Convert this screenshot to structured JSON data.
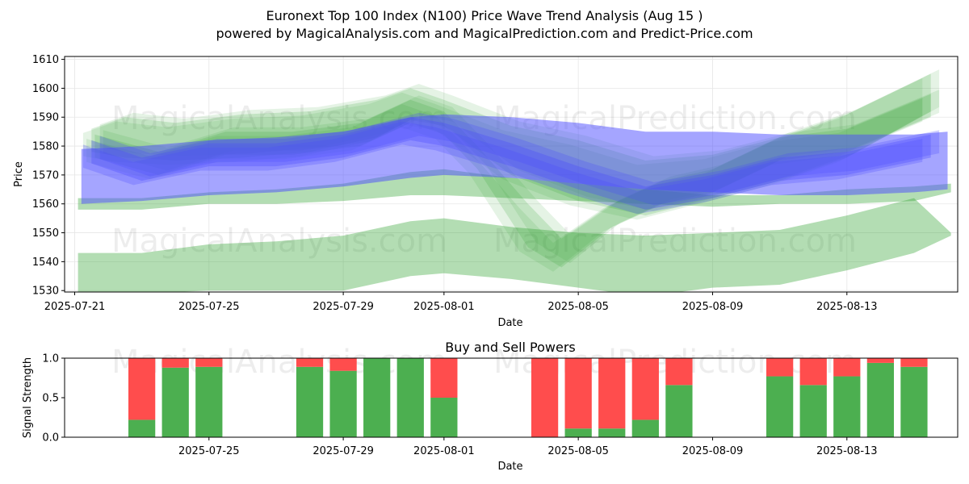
{
  "title": "Euronext Top 100 Index (N100) Price Wave Trend Analysis (Aug 15 )",
  "subtitle": "powered by MagicalAnalysis.com and MagicalPrediction.com and Predict-Price.com",
  "watermarks": [
    "MagicalAnalysis.com",
    "MagicalPrediction.com"
  ],
  "colors": {
    "green_band": "#2ca02c",
    "blue_band": "#4b4bff",
    "buy": "#4caf50",
    "sell": "#ff4d4d"
  },
  "chart_data": [
    {
      "type": "area",
      "title": "",
      "xlabel": "Date",
      "ylabel": "Price",
      "grid": true,
      "x_start": "2025-07-21",
      "x_end": "2025-08-16",
      "xlim_days": [
        -0.3,
        26.3
      ],
      "ylim": [
        1529.5,
        1611
      ],
      "y_ticks": [
        1530,
        1540,
        1550,
        1560,
        1570,
        1580,
        1590,
        1600,
        1610
      ],
      "x_ticks": [
        {
          "day": 0,
          "label": "2025-07-21"
        },
        {
          "day": 4,
          "label": "2025-07-25"
        },
        {
          "day": 8,
          "label": "2025-07-29"
        },
        {
          "day": 11,
          "label": "2025-08-01"
        },
        {
          "day": 15,
          "label": "2025-08-05"
        },
        {
          "day": 19,
          "label": "2025-08-09"
        },
        {
          "day": 23,
          "label": "2025-08-13"
        }
      ],
      "series": [
        {
          "name": "green-band-low",
          "color": "green",
          "days": [
            0.1,
            2,
            4,
            6,
            8,
            10,
            11,
            13,
            15,
            17,
            19,
            21,
            23,
            25,
            26.1
          ],
          "upper": [
            1543,
            1543,
            1546,
            1547,
            1549,
            1554,
            1555,
            1552,
            1550,
            1549,
            1550,
            1551,
            1556,
            1562,
            1550
          ],
          "lower": [
            1529,
            1529,
            1530,
            1530,
            1530,
            1535,
            1536,
            1534,
            1531,
            1528,
            1531,
            1532,
            1537,
            1543,
            1549
          ]
        },
        {
          "name": "green-band-mid",
          "color": "green",
          "days": [
            0.1,
            2,
            4,
            6,
            8,
            10,
            11,
            13,
            15,
            17,
            19,
            21,
            23,
            25,
            26.1
          ],
          "upper": [
            1562,
            1562,
            1564,
            1565,
            1567,
            1571,
            1572,
            1569,
            1567,
            1565,
            1563,
            1563,
            1565,
            1566,
            1567
          ],
          "lower": [
            1558,
            1558,
            1560,
            1560,
            1561,
            1563,
            1563,
            1562,
            1561,
            1560,
            1559,
            1560,
            1560,
            1561,
            1564
          ]
        },
        {
          "name": "green-band-upper",
          "color": "green",
          "days": [
            0.5,
            1.5,
            3,
            5,
            7,
            9,
            10,
            11,
            13,
            15,
            17,
            19,
            21,
            23,
            25.5
          ],
          "upper": [
            1586,
            1590,
            1588,
            1591,
            1592,
            1596,
            1600,
            1596,
            1587,
            1582,
            1575,
            1577,
            1583,
            1591,
            1605
          ],
          "lower": [
            1578,
            1576,
            1575,
            1576,
            1578,
            1583,
            1589,
            1587,
            1570,
            1561,
            1556,
            1562,
            1568,
            1576,
            1592
          ]
        },
        {
          "name": "green-band-swing",
          "color": "green",
          "days": [
            0.6,
            2.5,
            4.5,
            6.5,
            8.5,
            10,
            11,
            12,
            13.5,
            14.5,
            16,
            17.5,
            19,
            21,
            23,
            25.5
          ],
          "upper": [
            1584,
            1578,
            1585,
            1585,
            1588,
            1596,
            1592,
            1580,
            1560,
            1548,
            1560,
            1568,
            1572,
            1583,
            1586,
            1598
          ],
          "lower": [
            1576,
            1570,
            1577,
            1577,
            1580,
            1588,
            1584,
            1572,
            1545,
            1538,
            1552,
            1560,
            1564,
            1575,
            1578,
            1590
          ]
        },
        {
          "name": "blue-band-outer",
          "color": "blue",
          "days": [
            0.2,
            2,
            4,
            6,
            8,
            10,
            11,
            13,
            15,
            17,
            19,
            21,
            23,
            25,
            26
          ],
          "upper": [
            1579,
            1580,
            1582,
            1583,
            1585,
            1590,
            1591,
            1590,
            1588,
            1585,
            1585,
            1584,
            1584,
            1584,
            1585
          ],
          "lower": [
            1560,
            1561,
            1563,
            1564,
            1566,
            1569,
            1570,
            1569,
            1567,
            1565,
            1564,
            1563,
            1563,
            1564,
            1565
          ]
        },
        {
          "name": "blue-band-inner",
          "color": "blue",
          "days": [
            0.5,
            2,
            4,
            6,
            8,
            10,
            11,
            13,
            15,
            17,
            19,
            21,
            23,
            25.5
          ],
          "upper": [
            1582,
            1576,
            1581,
            1581,
            1584,
            1590,
            1588,
            1581,
            1573,
            1566,
            1570,
            1576,
            1578,
            1584
          ],
          "lower": [
            1574,
            1568,
            1573,
            1573,
            1576,
            1582,
            1580,
            1573,
            1565,
            1558,
            1562,
            1568,
            1570,
            1576
          ]
        }
      ]
    },
    {
      "type": "bar",
      "title": "Buy and Sell Powers",
      "xlabel": "Date",
      "ylabel": "Signal Strength",
      "ylim": [
        0,
        1
      ],
      "y_ticks": [
        0.0,
        0.5,
        1.0
      ],
      "y_tick_labels": [
        "0.0",
        "0.5",
        "1.0"
      ],
      "x_ticks": [
        {
          "day": 4,
          "label": "2025-07-25"
        },
        {
          "day": 8,
          "label": "2025-07-29"
        },
        {
          "day": 11,
          "label": "2025-08-01"
        },
        {
          "day": 15,
          "label": "2025-08-05"
        },
        {
          "day": 19,
          "label": "2025-08-09"
        },
        {
          "day": 23,
          "label": "2025-08-13"
        }
      ],
      "x_day_range": [
        -0.3,
        26.3
      ],
      "series": [
        {
          "name": "Buy",
          "color": "buy"
        },
        {
          "name": "Sell",
          "color": "sell"
        }
      ],
      "bars": [
        {
          "day": 2,
          "buy": 0.22
        },
        {
          "day": 3,
          "buy": 0.88
        },
        {
          "day": 4,
          "buy": 0.89
        },
        {
          "day": 7,
          "buy": 0.89
        },
        {
          "day": 8,
          "buy": 0.84
        },
        {
          "day": 9,
          "buy": 1.0
        },
        {
          "day": 10,
          "buy": 1.0
        },
        {
          "day": 11,
          "buy": 0.5
        },
        {
          "day": 14,
          "buy": 0.0
        },
        {
          "day": 15,
          "buy": 0.11
        },
        {
          "day": 16,
          "buy": 0.11
        },
        {
          "day": 17,
          "buy": 0.22
        },
        {
          "day": 18,
          "buy": 0.66
        },
        {
          "day": 21,
          "buy": 0.77
        },
        {
          "day": 22,
          "buy": 0.66
        },
        {
          "day": 23,
          "buy": 0.77
        },
        {
          "day": 24,
          "buy": 0.94
        },
        {
          "day": 25,
          "buy": 0.89
        }
      ]
    }
  ]
}
